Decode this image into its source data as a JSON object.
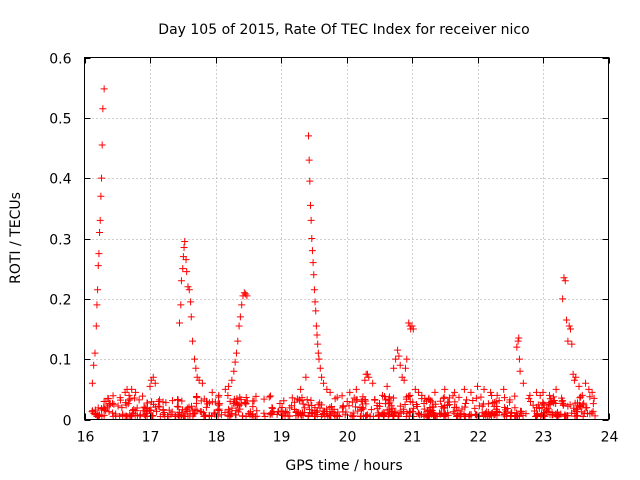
{
  "chart_data": {
    "type": "scatter",
    "title": "Day 105 of 2015, Rate Of TEC Index for receiver nico",
    "xlabel": "GPS time / hours",
    "ylabel": "ROTI / TECUs",
    "xlim": [
      16,
      24
    ],
    "ylim": [
      0,
      0.6
    ],
    "xticks": [
      16,
      17,
      18,
      19,
      20,
      21,
      22,
      23,
      24
    ],
    "yticks": [
      0,
      0.1,
      0.2,
      0.3,
      0.4,
      0.5,
      0.6
    ],
    "xtick_labels": [
      "16",
      "17",
      "18",
      "19",
      "20",
      "21",
      "22",
      "23",
      "24"
    ],
    "ytick_labels": [
      "0",
      "0.1",
      "0.2",
      "0.3",
      "0.4",
      "0.5",
      "0.6"
    ],
    "grid": true,
    "marker": "+",
    "series_color": "#ff0000",
    "baseline": {
      "x_range": [
        16.1,
        23.8
      ],
      "y_range": [
        0.005,
        0.04
      ],
      "count": 700
    },
    "series": [
      {
        "name": "ROTI",
        "x": [
          16.12,
          16.14,
          16.16,
          16.18,
          16.19,
          16.2,
          16.21,
          16.22,
          16.23,
          16.24,
          16.25,
          16.26,
          16.27,
          16.28,
          16.3,
          16.62,
          16.65,
          16.68,
          16.72,
          16.78,
          17.0,
          17.02,
          17.05,
          17.08,
          17.45,
          17.47,
          17.48,
          17.5,
          17.51,
          17.52,
          17.53,
          17.55,
          17.56,
          17.58,
          17.6,
          17.62,
          17.63,
          17.65,
          17.68,
          17.7,
          17.72,
          17.75,
          17.8,
          17.95,
          18.05,
          18.15,
          18.2,
          18.25,
          18.28,
          18.3,
          18.32,
          18.34,
          18.36,
          18.38,
          18.4,
          18.42,
          18.44,
          18.46,
          18.48,
          19.3,
          19.38,
          19.42,
          19.43,
          19.44,
          19.45,
          19.46,
          19.47,
          19.48,
          19.49,
          19.5,
          19.51,
          19.52,
          19.53,
          19.54,
          19.55,
          19.56,
          19.57,
          19.58,
          19.6,
          19.62,
          19.65,
          19.7,
          19.75,
          20.05,
          20.15,
          20.28,
          20.3,
          20.32,
          20.34,
          20.4,
          20.55,
          20.62,
          20.72,
          20.75,
          20.78,
          20.8,
          20.82,
          20.85,
          20.88,
          20.9,
          20.92,
          20.95,
          20.97,
          20.98,
          21.0,
          21.02,
          21.05,
          21.1,
          21.15,
          21.35,
          21.5,
          21.65,
          21.8,
          21.9,
          22.0,
          22.1,
          22.2,
          22.3,
          22.4,
          22.6,
          22.62,
          22.63,
          22.64,
          22.65,
          22.7,
          22.8,
          22.9,
          23.0,
          23.1,
          23.2,
          23.3,
          23.32,
          23.34,
          23.36,
          23.38,
          23.4,
          23.42,
          23.44,
          23.46,
          23.48,
          23.5,
          23.55,
          23.6,
          23.65,
          23.7,
          23.75,
          23.78
        ],
        "y": [
          0.06,
          0.09,
          0.11,
          0.155,
          0.19,
          0.215,
          0.255,
          0.275,
          0.31,
          0.33,
          0.37,
          0.4,
          0.455,
          0.515,
          0.548,
          0.045,
          0.05,
          0.04,
          0.05,
          0.045,
          0.055,
          0.065,
          0.07,
          0.06,
          0.16,
          0.19,
          0.23,
          0.25,
          0.27,
          0.285,
          0.295,
          0.265,
          0.245,
          0.22,
          0.215,
          0.195,
          0.17,
          0.13,
          0.1,
          0.085,
          0.07,
          0.065,
          0.06,
          0.045,
          0.04,
          0.05,
          0.055,
          0.065,
          0.08,
          0.095,
          0.11,
          0.13,
          0.155,
          0.17,
          0.19,
          0.205,
          0.21,
          0.208,
          0.205,
          0.05,
          0.07,
          0.47,
          0.43,
          0.395,
          0.355,
          0.33,
          0.3,
          0.28,
          0.26,
          0.24,
          0.215,
          0.195,
          0.18,
          0.155,
          0.14,
          0.125,
          0.11,
          0.1,
          0.085,
          0.07,
          0.06,
          0.05,
          0.045,
          0.045,
          0.05,
          0.065,
          0.075,
          0.075,
          0.07,
          0.06,
          0.04,
          0.055,
          0.085,
          0.1,
          0.115,
          0.105,
          0.09,
          0.07,
          0.065,
          0.085,
          0.1,
          0.16,
          0.155,
          0.15,
          0.155,
          0.15,
          0.05,
          0.045,
          0.04,
          0.045,
          0.05,
          0.045,
          0.05,
          0.045,
          0.055,
          0.05,
          0.045,
          0.04,
          0.05,
          0.12,
          0.13,
          0.135,
          0.1,
          0.08,
          0.06,
          0.04,
          0.045,
          0.045,
          0.04,
          0.05,
          0.2,
          0.235,
          0.23,
          0.165,
          0.13,
          0.155,
          0.15,
          0.125,
          0.075,
          0.065,
          0.07,
          0.055,
          0.04,
          0.06,
          0.05,
          0.045,
          0.035
        ]
      }
    ]
  }
}
